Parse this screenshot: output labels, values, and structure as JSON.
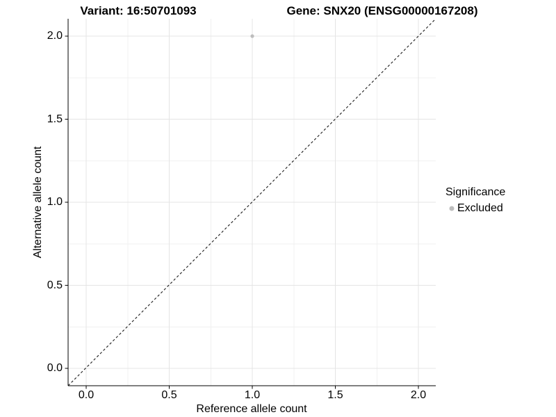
{
  "chart_data": {
    "type": "scatter",
    "title_left": "Variant: 16:50701093",
    "title_right": "Gene: SNX20 (ENSG00000167208)",
    "xlabel": "Reference allele count",
    "ylabel": "Alternative allele count",
    "xlim": [
      -0.105,
      2.105
    ],
    "ylim": [
      -0.105,
      2.105
    ],
    "x_ticks": [
      0.0,
      0.5,
      1.0,
      1.5,
      2.0
    ],
    "y_ticks": [
      0.0,
      0.5,
      1.0,
      1.5,
      2.0
    ],
    "x_tick_labels": [
      "0.0",
      "0.5",
      "1.0",
      "1.5",
      "2.0"
    ],
    "y_tick_labels": [
      "0.0",
      "0.5",
      "1.0",
      "1.5",
      "2.0"
    ],
    "x_minor_ticks": [
      0.25,
      0.75,
      1.25,
      1.75
    ],
    "y_minor_ticks": [
      0.25,
      0.75,
      1.25,
      1.75
    ],
    "grid": true,
    "reference_line": {
      "type": "abline",
      "slope": 1,
      "intercept": 0,
      "style": "dashed",
      "color": "#1a1a1a"
    },
    "series": [
      {
        "name": "Excluded",
        "color": "#bdbdbd",
        "points": [
          {
            "x": 1.0,
            "y": 2.0
          }
        ]
      }
    ],
    "legend": {
      "title": "Significance",
      "position": "right",
      "items": [
        {
          "label": "Excluded",
          "color": "#bdbdbd",
          "shape": "circle"
        }
      ]
    },
    "colors": {
      "background": "#ffffff",
      "grid_major": "#e4e4e4",
      "grid_minor": "#f0f0f0",
      "axis_line": "#000000",
      "tick_mark": "#000000",
      "text": "#000000",
      "point": "#bdbdbd"
    }
  }
}
